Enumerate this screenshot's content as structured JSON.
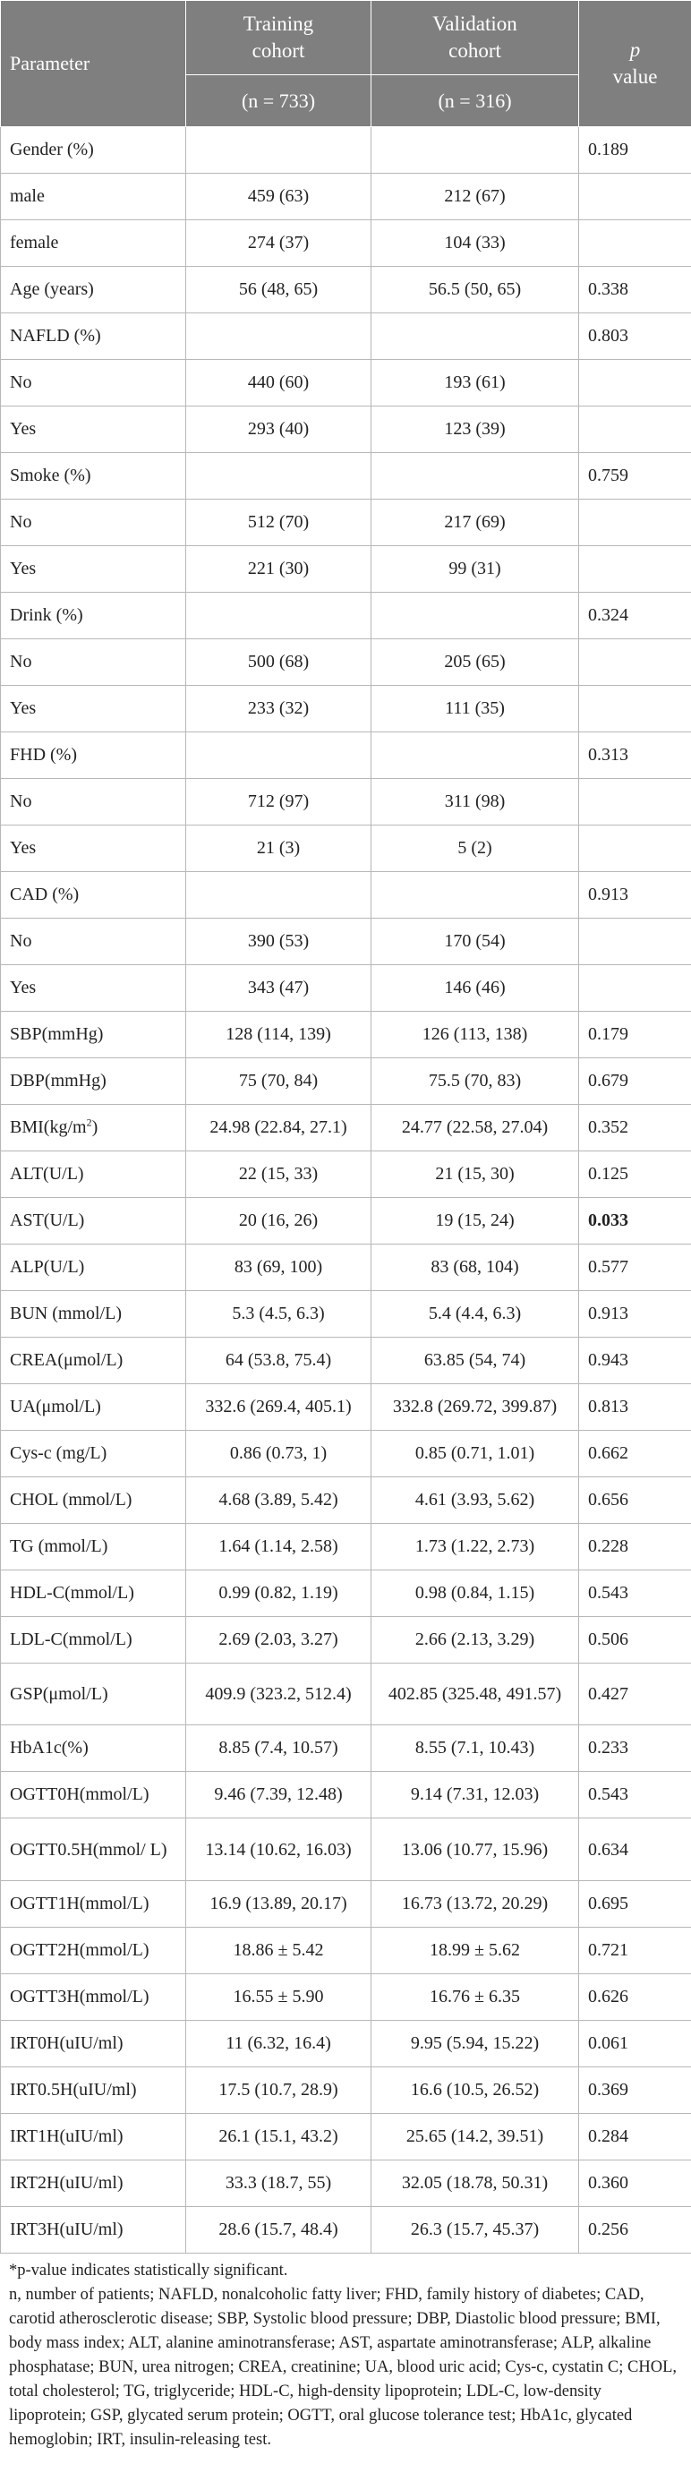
{
  "table": {
    "headers": {
      "parameter": "Parameter",
      "training_line1": "Training",
      "training_line2": "cohort",
      "training_n": "(n = 733)",
      "validation_line1": "Validation",
      "validation_line2": "cohort",
      "validation_n": "(n = 316)",
      "p_italic": "p",
      "p_value": "value"
    },
    "rows": [
      {
        "label": "Gender (%)",
        "training": "",
        "validation": "",
        "p": "0.189"
      },
      {
        "label": "male",
        "training": "459 (63)",
        "validation": "212 (67)",
        "p": ""
      },
      {
        "label": "female",
        "training": "274 (37)",
        "validation": "104 (33)",
        "p": ""
      },
      {
        "label": "Age (years)",
        "training": "56 (48, 65)",
        "validation": "56.5 (50, 65)",
        "p": "0.338"
      },
      {
        "label": "NAFLD (%)",
        "training": "",
        "validation": "",
        "p": "0.803"
      },
      {
        "label": "No",
        "training": "440 (60)",
        "validation": "193 (61)",
        "p": ""
      },
      {
        "label": "Yes",
        "training": "293 (40)",
        "validation": "123 (39)",
        "p": ""
      },
      {
        "label": "Smoke (%)",
        "training": "",
        "validation": "",
        "p": "0.759"
      },
      {
        "label": "No",
        "training": "512 (70)",
        "validation": "217 (69)",
        "p": ""
      },
      {
        "label": "Yes",
        "training": "221 (30)",
        "validation": "99 (31)",
        "p": ""
      },
      {
        "label": "Drink (%)",
        "training": "",
        "validation": "",
        "p": "0.324"
      },
      {
        "label": "No",
        "training": "500 (68)",
        "validation": "205 (65)",
        "p": ""
      },
      {
        "label": "Yes",
        "training": "233 (32)",
        "validation": "111 (35)",
        "p": ""
      },
      {
        "label": "FHD (%)",
        "training": "",
        "validation": "",
        "p": "0.313"
      },
      {
        "label": "No",
        "training": "712 (97)",
        "validation": "311 (98)",
        "p": ""
      },
      {
        "label": "Yes",
        "training": "21 (3)",
        "validation": "5 (2)",
        "p": ""
      },
      {
        "label": "CAD (%)",
        "training": "",
        "validation": "",
        "p": "0.913"
      },
      {
        "label": "No",
        "training": "390 (53)",
        "validation": "170 (54)",
        "p": ""
      },
      {
        "label": "Yes",
        "training": "343 (47)",
        "validation": "146 (46)",
        "p": ""
      },
      {
        "label": "SBP(mmHg)",
        "training": "128 (114, 139)",
        "validation": "126 (113, 138)",
        "p": "0.179"
      },
      {
        "label": "DBP(mmHg)",
        "training": "75 (70, 84)",
        "validation": "75.5 (70, 83)",
        "p": "0.679"
      },
      {
        "label": "BMI(kg/m",
        "sup": "2",
        "label_after": ")",
        "training": "24.98 (22.84, 27.1)",
        "validation": "24.77 (22.58, 27.04)",
        "p": "0.352"
      },
      {
        "label": "ALT(U/L)",
        "training": "22 (15, 33)",
        "validation": "21 (15, 30)",
        "p": "0.125"
      },
      {
        "label": "AST(U/L)",
        "training": "20 (16, 26)",
        "validation": "19 (15, 24)",
        "p": "0.033",
        "bold": true
      },
      {
        "label": "ALP(U/L)",
        "training": "83 (69, 100)",
        "validation": "83 (68, 104)",
        "p": "0.577",
        "sep": true
      },
      {
        "label": "BUN (mmol/L)",
        "training": "5.3 (4.5, 6.3)",
        "validation": "5.4 (4.4, 6.3)",
        "p": "0.913"
      },
      {
        "label": "CREA(μmol/L)",
        "training": "64 (53.8, 75.4)",
        "validation": "63.85 (54, 74)",
        "p": "0.943"
      },
      {
        "label": "UA(μmol/L)",
        "training": "332.6 (269.4, 405.1)",
        "validation": "332.8 (269.72, 399.87)",
        "p": "0.813"
      },
      {
        "label": "Cys-c (mg/L)",
        "training": "0.86 (0.73, 1)",
        "validation": "0.85 (0.71, 1.01)",
        "p": "0.662"
      },
      {
        "label": "CHOL (mmol/L)",
        "training": "4.68 (3.89, 5.42)",
        "validation": "4.61 (3.93, 5.62)",
        "p": "0.656"
      },
      {
        "label": "TG (mmol/L)",
        "training": "1.64 (1.14, 2.58)",
        "validation": "1.73 (1.22, 2.73)",
        "p": "0.228"
      },
      {
        "label": "HDL-C(mmol/L)",
        "training": "0.99 (0.82, 1.19)",
        "validation": "0.98 (0.84, 1.15)",
        "p": "0.543"
      },
      {
        "label": "LDL-C(mmol/L)",
        "training": "2.69 (2.03, 3.27)",
        "validation": "2.66 (2.13, 3.29)",
        "p": "0.506"
      },
      {
        "label": "GSP(μmol/L)",
        "training": "409.9 (323.2, 512.4)",
        "validation": "402.85 (325.48, 491.57)",
        "p": "0.427",
        "tall": "a"
      },
      {
        "label": "HbA1c(%)",
        "training": "8.85 (7.4, 10.57)",
        "validation": "8.55 (7.1, 10.43)",
        "p": "0.233"
      },
      {
        "label": "OGTT0H(mmol/L)",
        "training": "9.46 (7.39, 12.48)",
        "validation": "9.14 (7.31, 12.03)",
        "p": "0.543"
      },
      {
        "label": "OGTT0.5H(mmol/ L)",
        "training": "13.14 (10.62, 16.03)",
        "validation": "13.06 (10.77, 15.96)",
        "p": "0.634",
        "tall": "b"
      },
      {
        "label": "OGTT1H(mmol/L)",
        "training": "16.9 (13.89, 20.17)",
        "validation": "16.73 (13.72, 20.29)",
        "p": "0.695"
      },
      {
        "label": "OGTT2H(mmol/L)",
        "training": "18.86 ± 5.42",
        "validation": "18.99 ± 5.62",
        "p": "0.721"
      },
      {
        "label": "OGTT3H(mmol/L)",
        "training": "16.55 ± 5.90",
        "validation": "16.76 ± 6.35",
        "p": "0.626"
      },
      {
        "label": "IRT0H(uIU/ml)",
        "training": "11 (6.32, 16.4)",
        "validation": "9.95 (5.94, 15.22)",
        "p": "0.061"
      },
      {
        "label": "IRT0.5H(uIU/ml)",
        "training": "17.5 (10.7, 28.9)",
        "validation": "16.6 (10.5, 26.52)",
        "p": "0.369"
      },
      {
        "label": "IRT1H(uIU/ml)",
        "training": "26.1 (15.1, 43.2)",
        "validation": "25.65 (14.2, 39.51)",
        "p": "0.284"
      },
      {
        "label": "IRT2H(uIU/ml)",
        "training": "33.3 (18.7, 55)",
        "validation": "32.05 (18.78, 50.31)",
        "p": "0.360"
      },
      {
        "label": "IRT3H(uIU/ml)",
        "training": "28.6 (15.7, 48.4)",
        "validation": "26.3 (15.7, 45.37)",
        "p": "0.256"
      }
    ]
  },
  "footnotes": {
    "significance": "*p-value indicates statistically significant.",
    "abbreviations": "n, number of patients; NAFLD, nonalcoholic fatty liver; FHD, family history of diabetes; CAD, carotid atherosclerotic disease; SBP, Systolic blood pressure; DBP, Diastolic blood pressure; BMI, body mass index; ALT, alanine aminotransferase; AST, aspartate aminotransferase; ALP, alkaline phosphatase; BUN, urea nitrogen; CREA, creatinine; UA, blood uric acid; Cys-c, cystatin C; CHOL, total cholesterol; TG, triglyceride; HDL-C, high-density lipoprotein; LDL-C, low-density lipoprotein; GSP, glycated serum protein; OGTT, oral glucose tolerance test; HbA1c, glycated hemoglobin; IRT, insulin-releasing test."
  }
}
